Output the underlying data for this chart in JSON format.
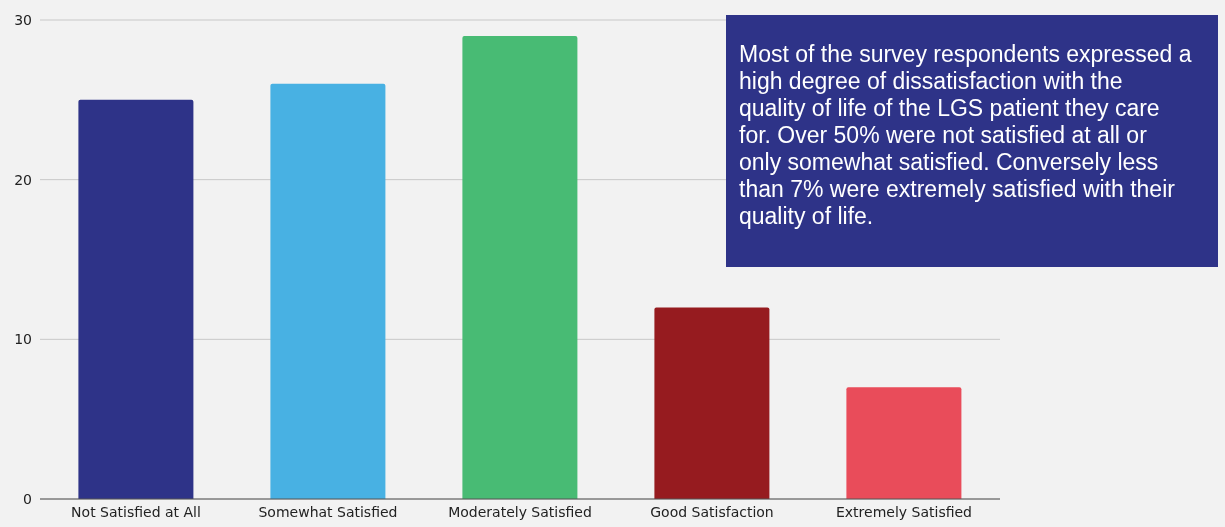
{
  "chart_data": {
    "type": "bar",
    "categories": [
      "Not Satisfied at All",
      "Somewhat Satisfied",
      "Moderately Satisfied",
      "Good Satisfaction",
      "Extremely Satisfied"
    ],
    "values": [
      25,
      26,
      29,
      12,
      7
    ],
    "colors": [
      "#2e3388",
      "#48b1e3",
      "#48bb74",
      "#961b1f",
      "#e94c5a"
    ],
    "ylim": [
      0,
      30
    ],
    "yticks": [
      0,
      10,
      20,
      30
    ],
    "grid": "y",
    "legend": false,
    "annotations": [
      "Most of the survey respondents expressed a high degree of dissatisfaction with the quality of life of the LGS patient they care for. Over 50% were not satisfied at all or only somewhat satisfied. Conversely less than 7% were extremely satisfied with their quality of life."
    ]
  }
}
